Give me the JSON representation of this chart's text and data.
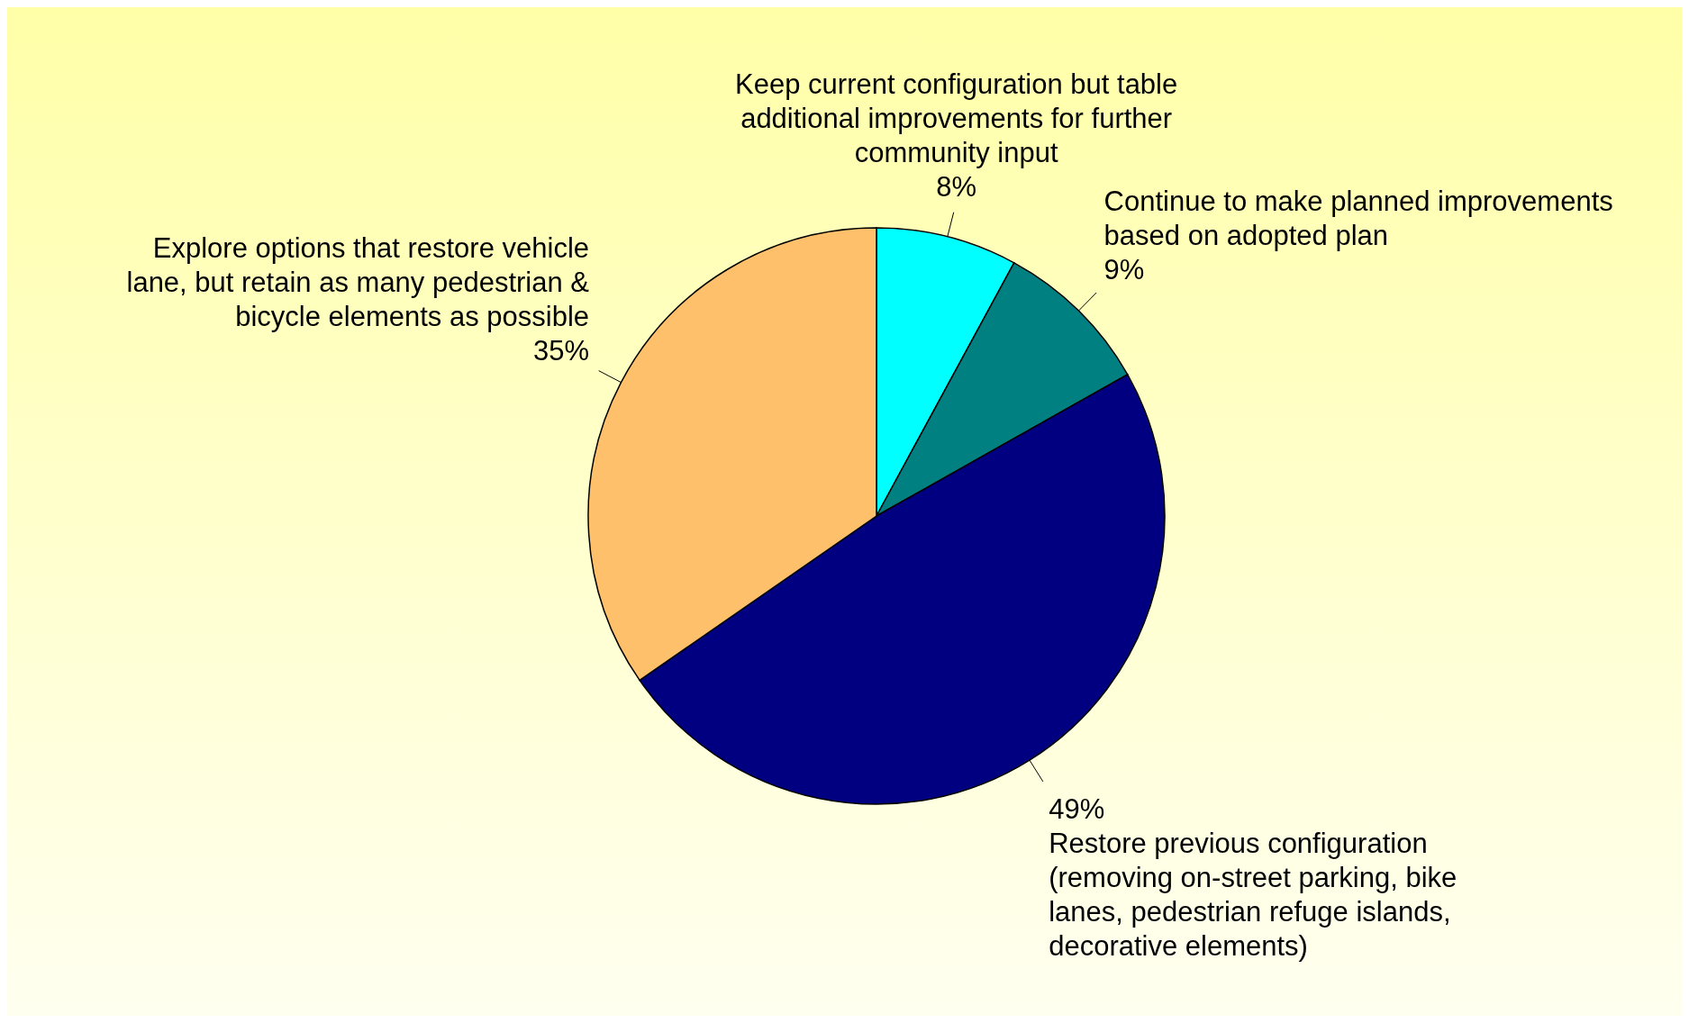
{
  "chart_data": {
    "type": "pie",
    "categories": [
      "Keep current configuration but table additional improvements for further community input",
      "Continue to make planned improvements based on adopted plan",
      "Restore previous configuration (removing on-street parking, bike lanes, pedestrian refuge islands, decorative elements)",
      "Explore options that restore vehicle lane, but retain as many pedestrian & bicycle elements as possible"
    ],
    "values": [
      8,
      9,
      49,
      35
    ],
    "value_labels": [
      "8%",
      "9%",
      "49%",
      "35%"
    ],
    "colors": [
      "#00ffff",
      "#008080",
      "#000080",
      "#ffc06c"
    ],
    "legend": false
  }
}
